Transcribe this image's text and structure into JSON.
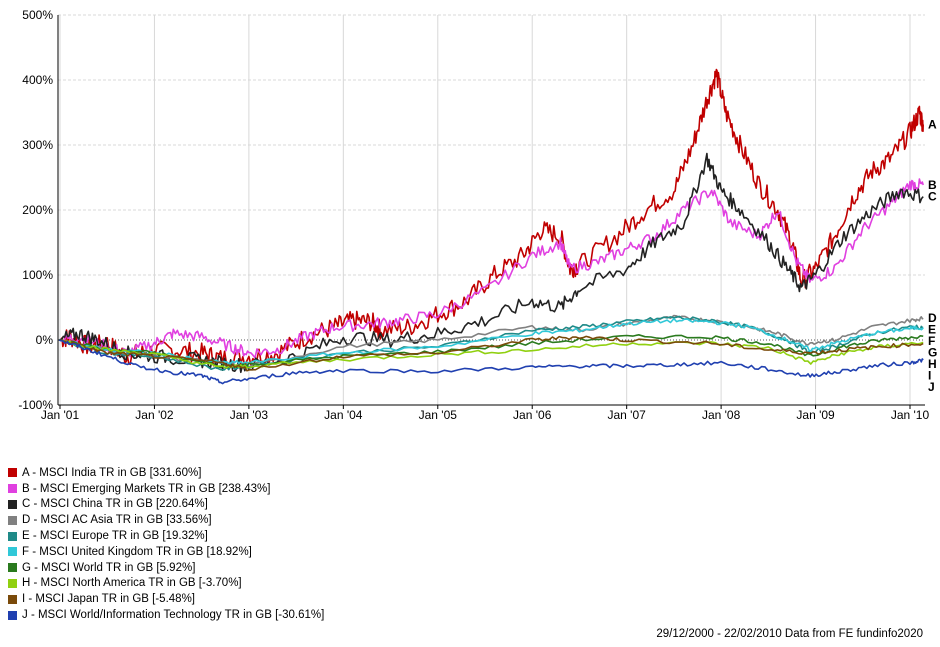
{
  "chart_data": {
    "type": "line",
    "yticks": [
      "500%",
      "400%",
      "300%",
      "200%",
      "100%",
      "0%",
      "-100%"
    ],
    "ylim": [
      -100,
      500
    ],
    "xticks": [
      "Jan '01",
      "Jan '02",
      "Jan '03",
      "Jan '04",
      "Jan '05",
      "Jan '06",
      "Jan '07",
      "Jan '08",
      "Jan '09",
      "Jan '10"
    ],
    "xrange": [
      "2000-12-29",
      "2010-02-22"
    ],
    "grid": true,
    "series": [
      {
        "key": "A",
        "name": "A - MSCI India TR in GB [331.60%]",
        "color": "#c00000",
        "x": [
          2000.99,
          2001.1,
          2001.3,
          2001.5,
          2001.7,
          2001.9,
          2002.2,
          2002.5,
          2002.7,
          2003.0,
          2003.3,
          2003.6,
          2003.9,
          2004.1,
          2004.3,
          2004.4,
          2004.7,
          2005.0,
          2005.3,
          2005.6,
          2005.9,
          2006.1,
          2006.3,
          2006.4,
          2006.5,
          2006.9,
          2007.2,
          2007.5,
          2007.7,
          2007.85,
          2007.95,
          2008.05,
          2008.2,
          2008.4,
          2008.6,
          2008.75,
          2008.85,
          2009.0,
          2009.2,
          2009.4,
          2009.6,
          2009.8,
          2010.0,
          2010.1,
          2010.14
        ],
        "y": [
          0,
          5,
          -10,
          -5,
          -25,
          -18,
          -15,
          -20,
          -28,
          -25,
          -20,
          5,
          20,
          30,
          28,
          15,
          20,
          40,
          60,
          100,
          130,
          170,
          160,
          110,
          115,
          160,
          200,
          230,
          300,
          370,
          410,
          350,
          300,
          240,
          200,
          150,
          90,
          110,
          160,
          220,
          260,
          280,
          320,
          350,
          331.6
        ]
      },
      {
        "key": "B",
        "name": "B - MSCI Emerging Markets TR in GB [238.43%]",
        "color": "#e040e0",
        "x": [
          2000.99,
          2001.2,
          2001.5,
          2001.7,
          2002.0,
          2002.2,
          2002.5,
          2002.8,
          2003.0,
          2003.3,
          2003.6,
          2003.9,
          2004.3,
          2004.6,
          2005.0,
          2005.5,
          2006.0,
          2006.3,
          2006.4,
          2006.7,
          2007.0,
          2007.3,
          2007.6,
          2007.9,
          2008.1,
          2008.4,
          2008.6,
          2008.8,
          2008.95,
          2009.2,
          2009.5,
          2009.8,
          2010.0,
          2010.14
        ],
        "y": [
          0,
          5,
          -10,
          -20,
          -5,
          10,
          5,
          -10,
          -20,
          -15,
          5,
          20,
          25,
          30,
          40,
          75,
          130,
          150,
          110,
          120,
          140,
          160,
          200,
          230,
          180,
          160,
          200,
          120,
          90,
          110,
          170,
          210,
          240,
          238.43
        ]
      },
      {
        "key": "C",
        "name": "C - MSCI China TR in GB [220.64%]",
        "color": "#222222",
        "x": [
          2000.99,
          2001.2,
          2001.4,
          2001.7,
          2002.0,
          2002.4,
          2002.7,
          2003.0,
          2003.5,
          2004.0,
          2004.5,
          2005.0,
          2005.5,
          2006.0,
          2006.3,
          2006.5,
          2007.0,
          2007.3,
          2007.6,
          2007.85,
          2008.0,
          2008.2,
          2008.5,
          2008.7,
          2008.85,
          2009.0,
          2009.3,
          2009.6,
          2009.9,
          2010.14
        ],
        "y": [
          0,
          10,
          0,
          -20,
          -25,
          -30,
          -35,
          -40,
          -25,
          5,
          0,
          10,
          30,
          60,
          50,
          80,
          110,
          150,
          180,
          280,
          230,
          200,
          150,
          110,
          80,
          100,
          160,
          200,
          230,
          220.64
        ]
      },
      {
        "key": "D",
        "name": "D - MSCI AC Asia TR in GB [33.56%]",
        "color": "#808080",
        "x": [
          2000.99,
          2001.5,
          2002.0,
          2002.7,
          2003.0,
          2004.0,
          2005.0,
          2006.0,
          2006.5,
          2007.0,
          2007.5,
          2007.9,
          2008.3,
          2008.6,
          2008.9,
          2009.2,
          2009.6,
          2010.0,
          2010.14
        ],
        "y": [
          0,
          -15,
          -25,
          -35,
          -40,
          -10,
          0,
          20,
          15,
          25,
          35,
          30,
          20,
          10,
          -5,
          0,
          20,
          30,
          33.56
        ]
      },
      {
        "key": "E",
        "name": "E - MSCI Europe TR in GB [19.32%]",
        "color": "#1f8a88",
        "x": [
          2000.99,
          2001.5,
          2002.0,
          2002.7,
          2003.0,
          2004.0,
          2005.0,
          2006.0,
          2006.5,
          2007.0,
          2007.5,
          2007.9,
          2008.3,
          2008.7,
          2008.95,
          2009.2,
          2009.6,
          2010.0,
          2010.14
        ],
        "y": [
          0,
          -20,
          -25,
          -45,
          -40,
          -20,
          -10,
          15,
          20,
          28,
          35,
          30,
          20,
          0,
          -20,
          -10,
          10,
          20,
          19.32
        ]
      },
      {
        "key": "F",
        "name": "F - MSCI United Kingdom TR in GB [18.92%]",
        "color": "#30c8d8",
        "x": [
          2000.99,
          2001.5,
          2002.0,
          2002.7,
          2003.0,
          2004.0,
          2005.0,
          2006.0,
          2006.5,
          2007.0,
          2007.5,
          2007.9,
          2008.3,
          2008.7,
          2008.95,
          2009.2,
          2009.6,
          2010.0,
          2010.14
        ],
        "y": [
          0,
          -15,
          -20,
          -35,
          -35,
          -20,
          -10,
          10,
          15,
          25,
          30,
          28,
          20,
          0,
          -15,
          -5,
          10,
          18,
          18.92
        ]
      },
      {
        "key": "G",
        "name": "G - MSCI World TR in GB [5.92%]",
        "color": "#2a7a1e",
        "x": [
          2000.99,
          2001.5,
          2002.0,
          2002.7,
          2003.0,
          2004.0,
          2005.0,
          2006.0,
          2007.0,
          2007.9,
          2008.5,
          2008.95,
          2009.3,
          2009.7,
          2010.14
        ],
        "y": [
          0,
          -15,
          -20,
          -40,
          -38,
          -25,
          -18,
          -5,
          5,
          5,
          -5,
          -25,
          -10,
          0,
          5.92
        ]
      },
      {
        "key": "H",
        "name": "H - MSCI North America TR in GB [-3.70%]",
        "color": "#90d010",
        "x": [
          2000.99,
          2001.5,
          2002.0,
          2002.7,
          2003.0,
          2004.0,
          2005.0,
          2006.0,
          2007.0,
          2007.9,
          2008.5,
          2008.95,
          2009.3,
          2009.7,
          2010.14
        ],
        "y": [
          0,
          -15,
          -22,
          -42,
          -40,
          -30,
          -22,
          -15,
          -5,
          -5,
          -12,
          -35,
          -20,
          -10,
          -3.7
        ]
      },
      {
        "key": "I",
        "name": "I - MSCI Japan TR in GB [-5.48%]",
        "color": "#7a4a0a",
        "x": [
          2000.99,
          2001.5,
          2002.0,
          2002.7,
          2003.0,
          2004.0,
          2005.0,
          2006.0,
          2006.5,
          2007.0,
          2007.9,
          2008.5,
          2008.95,
          2009.3,
          2009.7,
          2010.14
        ],
        "y": [
          0,
          -20,
          -25,
          -35,
          -45,
          -25,
          -20,
          0,
          5,
          0,
          -5,
          -15,
          -20,
          -15,
          -10,
          -5.48
        ]
      },
      {
        "key": "J",
        "name": "J - MSCI World/Information Technology TR in GB [-30.61%]",
        "color": "#2040b0",
        "x": [
          2000.99,
          2001.2,
          2001.5,
          2001.8,
          2002.2,
          2002.5,
          2002.7,
          2003.0,
          2003.5,
          2004.0,
          2005.0,
          2006.0,
          2006.5,
          2007.0,
          2007.5,
          2008.0,
          2008.5,
          2008.9,
          2009.2,
          2009.6,
          2010.0,
          2010.14
        ],
        "y": [
          0,
          -10,
          -25,
          -40,
          -50,
          -55,
          -65,
          -60,
          -50,
          -47,
          -48,
          -42,
          -40,
          -40,
          -38,
          -35,
          -45,
          -55,
          -50,
          -40,
          -35,
          -30.61
        ]
      }
    ]
  },
  "footer": "29/12/2000 - 22/02/2010 Data from FE fundinfo2020"
}
